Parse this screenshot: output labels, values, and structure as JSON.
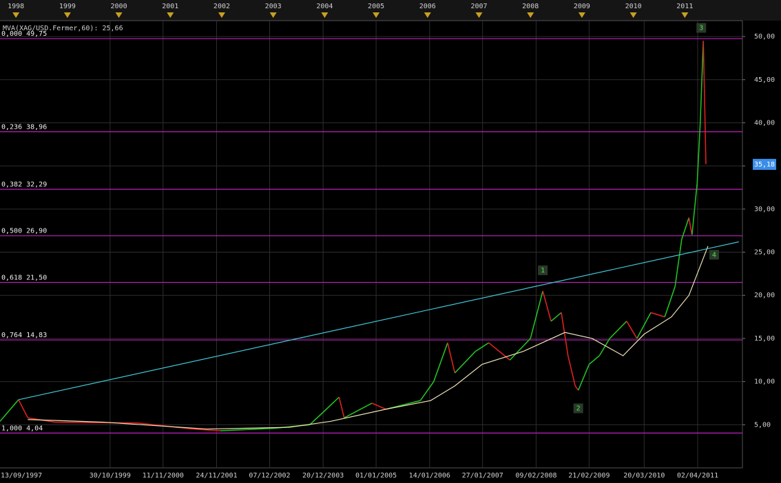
{
  "chart_data": {
    "type": "line",
    "title": "MVA(XAG/USD.Fermer,60): 25,66",
    "xlim": [
      1997.69,
      2012.12
    ],
    "ylim": [
      0,
      51.84
    ],
    "x2ticks": [
      1998,
      1999,
      2000,
      2001,
      2002,
      2003,
      2004,
      2005,
      2006,
      2007,
      2008,
      2009,
      2010,
      2011
    ],
    "xticks": [
      {
        "value": 1997.7,
        "label": "13/09/1997"
      },
      {
        "value": 1999.83,
        "label": "30/10/1999"
      },
      {
        "value": 2000.86,
        "label": "11/11/2000"
      },
      {
        "value": 2001.9,
        "label": "24/11/2001"
      },
      {
        "value": 2002.93,
        "label": "07/12/2002"
      },
      {
        "value": 2003.97,
        "label": "20/12/2003"
      },
      {
        "value": 2005.0,
        "label": "01/01/2005"
      },
      {
        "value": 2006.04,
        "label": "14/01/2006"
      },
      {
        "value": 2007.07,
        "label": "27/01/2007"
      },
      {
        "value": 2008.11,
        "label": "09/02/2008"
      },
      {
        "value": 2009.14,
        "label": "21/02/2009"
      },
      {
        "value": 2010.21,
        "label": "20/03/2010"
      },
      {
        "value": 2011.25,
        "label": "02/04/2011"
      }
    ],
    "yticks": [
      {
        "value": 5,
        "label": "5,00"
      },
      {
        "value": 10,
        "label": "10,00"
      },
      {
        "value": 15,
        "label": "15,00"
      },
      {
        "value": 20,
        "label": "20,00"
      },
      {
        "value": 25,
        "label": "25,00"
      },
      {
        "value": 30,
        "label": "30,00"
      },
      {
        "value": 35,
        "label": "35,00"
      },
      {
        "value": 40,
        "label": "40,00"
      },
      {
        "value": 45,
        "label": "45,00"
      },
      {
        "value": 50,
        "label": "50,00"
      }
    ],
    "grid": true,
    "series": [
      {
        "up_color": "#22c022",
        "down_color": "#e02020",
        "x": [
          1997.69,
          1998.05,
          1998.23,
          1998.76,
          2000.37,
          2001.44,
          2001.97,
          2003.04,
          2003.71,
          2003.98,
          2004.28,
          2004.38,
          2004.92,
          2005.19,
          2005.86,
          2006.12,
          2006.39,
          2006.53,
          2006.93,
          2007.19,
          2007.6,
          2008.0,
          2008.24,
          2008.4,
          2008.6,
          2008.73,
          2008.87,
          2008.93,
          2009.14,
          2009.34,
          2009.54,
          2009.87,
          2010.07,
          2010.34,
          2010.61,
          2010.81,
          2010.94,
          2011.08,
          2011.14,
          2011.24,
          2011.3,
          2011.36,
          2011.38,
          2011.41
        ],
        "values": [
          5.4,
          7.9,
          5.8,
          5.3,
          5.2,
          4.5,
          4.3,
          4.6,
          5.0,
          6.5,
          8.2,
          5.8,
          7.5,
          6.8,
          7.8,
          10.0,
          14.5,
          11.0,
          13.5,
          14.5,
          12.5,
          15.0,
          20.5,
          17.0,
          18.0,
          13.0,
          9.5,
          9.0,
          12.0,
          13.0,
          15.0,
          17.0,
          15.0,
          18.0,
          17.5,
          21.0,
          26.5,
          29.0,
          27.0,
          33.0,
          40.0,
          49.5,
          44.0,
          35.2
        ]
      },
      {
        "color": "#f0e4b8",
        "x": [
          1998.23,
          1999.7,
          2001.71,
          2003.31,
          2004.12,
          2005.19,
          2006.06,
          2006.53,
          2007.06,
          2007.86,
          2008.67,
          2009.2,
          2009.8,
          2010.21,
          2010.74,
          2011.08,
          2011.34,
          2011.45
        ],
        "values": [
          5.6,
          5.3,
          4.5,
          4.7,
          5.4,
          6.8,
          7.8,
          9.5,
          12.0,
          13.5,
          15.7,
          15.0,
          13.0,
          15.5,
          17.5,
          20.0,
          24.0,
          25.7
        ]
      }
    ],
    "fib_color": "#c020c0",
    "fib_levels": [
      {
        "value": 49.75,
        "label": "0,000 49,75"
      },
      {
        "value": 38.96,
        "label": "0,236 38,96"
      },
      {
        "value": 32.29,
        "label": "0,382 32,29"
      },
      {
        "value": 26.9,
        "label": "0,500 26,90"
      },
      {
        "value": 21.5,
        "label": "0,618 21,50"
      },
      {
        "value": 14.83,
        "label": "0,764 14,83"
      },
      {
        "value": 4.04,
        "label": "1,000 4,04"
      }
    ],
    "trendline": {
      "color": "#40c8d8",
      "x": [
        1998.05,
        2012.05
      ],
      "values": [
        7.9,
        26.2
      ]
    },
    "annotations": [
      {
        "text": "1",
        "x": 2008.24,
        "y": 22.9
      },
      {
        "text": "2",
        "x": 2008.93,
        "y": 6.9
      },
      {
        "text": "3",
        "x": 2011.32,
        "y": 51.0
      },
      {
        "text": "4",
        "x": 2011.57,
        "y": 24.7
      }
    ],
    "last_value": {
      "value": 35.18,
      "label": "35,18"
    }
  }
}
